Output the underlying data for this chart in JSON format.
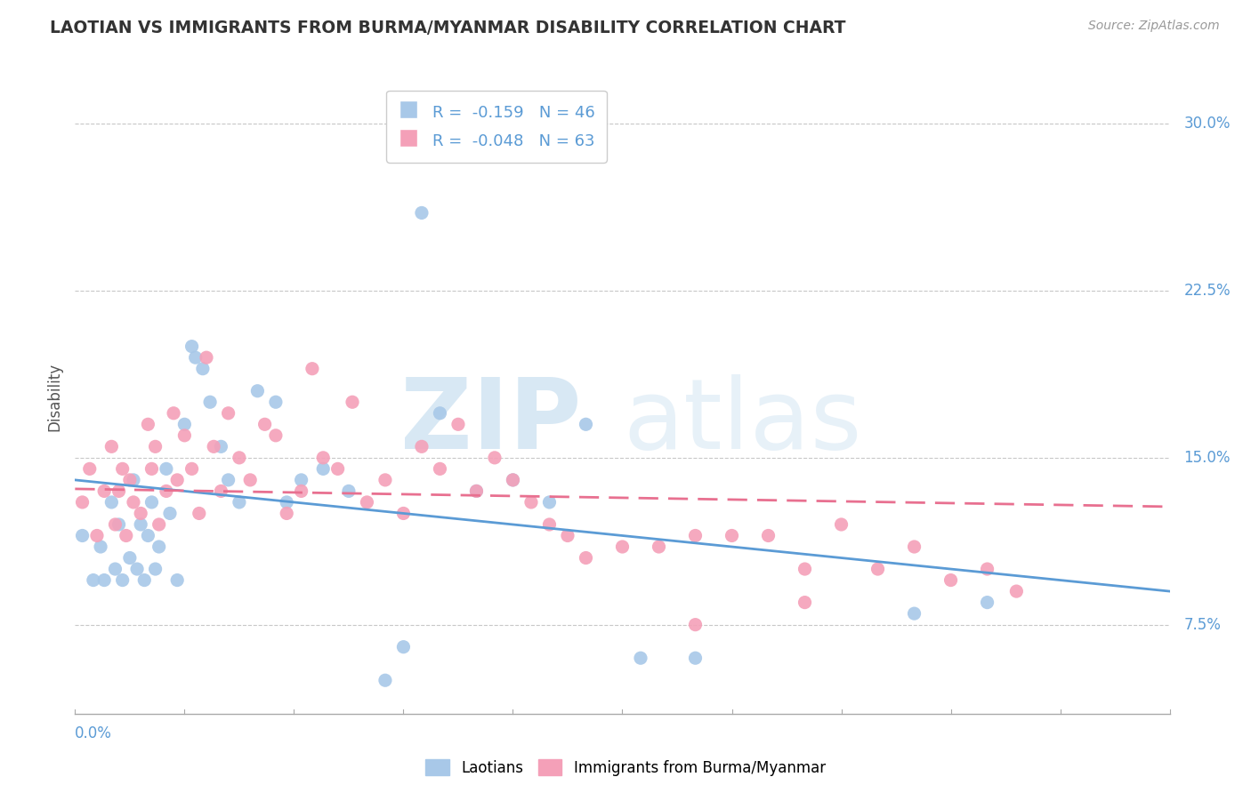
{
  "title": "LAOTIAN VS IMMIGRANTS FROM BURMA/MYANMAR DISABILITY CORRELATION CHART",
  "source": "Source: ZipAtlas.com",
  "ylabel": "Disability",
  "yticks": [
    "7.5%",
    "15.0%",
    "22.5%",
    "30.0%"
  ],
  "ytick_vals": [
    0.075,
    0.15,
    0.225,
    0.3
  ],
  "xlim": [
    0.0,
    0.3
  ],
  "ylim": [
    0.035,
    0.32
  ],
  "blue_color": "#a8c8e8",
  "pink_color": "#f4a0b8",
  "blue_line_color": "#5b9bd5",
  "pink_line_color": "#e87090",
  "blue_scatter_x": [
    0.002,
    0.005,
    0.007,
    0.008,
    0.01,
    0.011,
    0.012,
    0.013,
    0.015,
    0.016,
    0.017,
    0.018,
    0.019,
    0.02,
    0.021,
    0.022,
    0.023,
    0.025,
    0.026,
    0.028,
    0.03,
    0.032,
    0.033,
    0.035,
    0.037,
    0.04,
    0.042,
    0.045,
    0.05,
    0.055,
    0.058,
    0.062,
    0.068,
    0.075,
    0.085,
    0.09,
    0.095,
    0.1,
    0.11,
    0.12,
    0.13,
    0.14,
    0.155,
    0.17,
    0.23,
    0.25
  ],
  "blue_scatter_y": [
    0.115,
    0.095,
    0.11,
    0.095,
    0.13,
    0.1,
    0.12,
    0.095,
    0.105,
    0.14,
    0.1,
    0.12,
    0.095,
    0.115,
    0.13,
    0.1,
    0.11,
    0.145,
    0.125,
    0.095,
    0.165,
    0.2,
    0.195,
    0.19,
    0.175,
    0.155,
    0.14,
    0.13,
    0.18,
    0.175,
    0.13,
    0.14,
    0.145,
    0.135,
    0.05,
    0.065,
    0.26,
    0.17,
    0.135,
    0.14,
    0.13,
    0.165,
    0.06,
    0.06,
    0.08,
    0.085
  ],
  "pink_scatter_x": [
    0.002,
    0.004,
    0.006,
    0.008,
    0.01,
    0.011,
    0.012,
    0.013,
    0.014,
    0.015,
    0.016,
    0.018,
    0.02,
    0.021,
    0.022,
    0.023,
    0.025,
    0.027,
    0.028,
    0.03,
    0.032,
    0.034,
    0.036,
    0.038,
    0.04,
    0.042,
    0.045,
    0.048,
    0.052,
    0.055,
    0.058,
    0.062,
    0.065,
    0.068,
    0.072,
    0.076,
    0.08,
    0.085,
    0.09,
    0.095,
    0.1,
    0.105,
    0.11,
    0.115,
    0.12,
    0.125,
    0.13,
    0.135,
    0.14,
    0.15,
    0.16,
    0.17,
    0.18,
    0.19,
    0.2,
    0.21,
    0.22,
    0.23,
    0.24,
    0.25,
    0.258,
    0.2,
    0.17
  ],
  "pink_scatter_y": [
    0.13,
    0.145,
    0.115,
    0.135,
    0.155,
    0.12,
    0.135,
    0.145,
    0.115,
    0.14,
    0.13,
    0.125,
    0.165,
    0.145,
    0.155,
    0.12,
    0.135,
    0.17,
    0.14,
    0.16,
    0.145,
    0.125,
    0.195,
    0.155,
    0.135,
    0.17,
    0.15,
    0.14,
    0.165,
    0.16,
    0.125,
    0.135,
    0.19,
    0.15,
    0.145,
    0.175,
    0.13,
    0.14,
    0.125,
    0.155,
    0.145,
    0.165,
    0.135,
    0.15,
    0.14,
    0.13,
    0.12,
    0.115,
    0.105,
    0.11,
    0.11,
    0.115,
    0.115,
    0.115,
    0.1,
    0.12,
    0.1,
    0.11,
    0.095,
    0.1,
    0.09,
    0.085,
    0.075
  ]
}
